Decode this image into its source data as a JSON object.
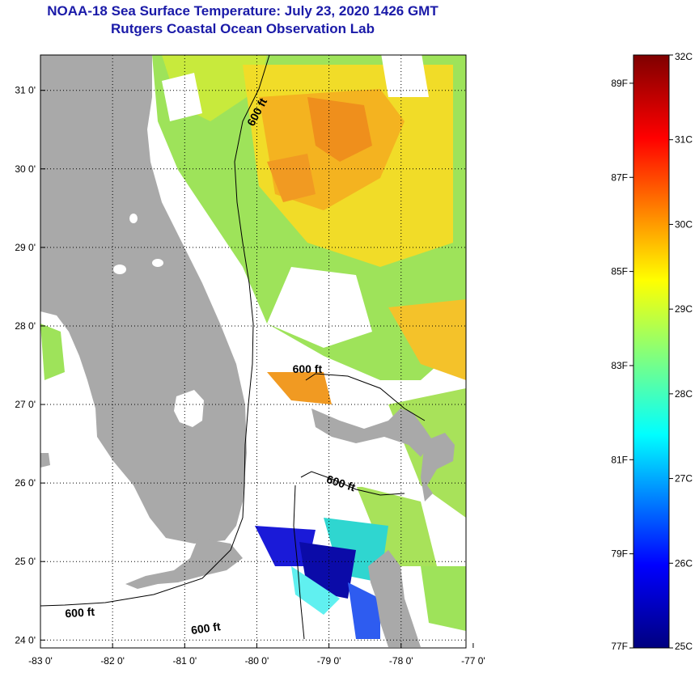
{
  "title": {
    "line1": "NOAA-18 Sea Surface Temperature:  July 23, 2020 1426 GMT",
    "line2": "Rutgers Coastal Ocean Observation Lab"
  },
  "map": {
    "lon_ticks": [
      "-83 0'",
      "-82 0'",
      "-81 0'",
      "-80 0'",
      "-79 0'",
      "-78 0'",
      "-77 0'"
    ],
    "lat_ticks": [
      "31 0'",
      "30 0'",
      "29 0'",
      "28 0'",
      "27 0'",
      "26 0'",
      "25 0'",
      "24 0'"
    ],
    "lon_values": [
      -83,
      -82,
      -81,
      -80,
      -79,
      -78,
      -77
    ],
    "lat_values": [
      31,
      30,
      29,
      28,
      27,
      26,
      25,
      24
    ],
    "lon_range": [
      -83,
      -77.1
    ],
    "lat_range": [
      23.9,
      31.45
    ],
    "grid": "dotted",
    "depth_labels": [
      {
        "text": "600 ft",
        "lon": -79.95,
        "lat": 30.7,
        "rotate": -62
      },
      {
        "text": "600 ft",
        "lon": -79.3,
        "lat": 27.4,
        "rotate": 0
      },
      {
        "text": "600 ft",
        "lon": -78.85,
        "lat": 25.95,
        "rotate": 18
      },
      {
        "text": "600 ft",
        "lon": -82.45,
        "lat": 24.3,
        "rotate": -4
      },
      {
        "text": "600 ft",
        "lon": -80.7,
        "lat": 24.1,
        "rotate": -8
      }
    ],
    "colors": {
      "land": "#a9a9a9",
      "frame": "#000000"
    }
  },
  "colorbar": {
    "range_c": [
      25,
      32
    ],
    "celsius_labels": [
      "32C",
      "31C",
      "30C",
      "29C",
      "28C",
      "27C",
      "26C",
      "25C"
    ],
    "celsius_values": [
      32,
      31,
      30,
      29,
      28,
      27,
      26,
      25
    ],
    "fahrenheit_labels": [
      "89F",
      "87F",
      "85F",
      "83F",
      "81F",
      "79F",
      "77F"
    ],
    "fahrenheit_values": [
      89,
      87,
      85,
      83,
      81,
      79,
      77
    ],
    "colormap": [
      "#00007f",
      "#0000ff",
      "#00ffff",
      "#ffff00",
      "#ff0000",
      "#7f0000"
    ]
  }
}
